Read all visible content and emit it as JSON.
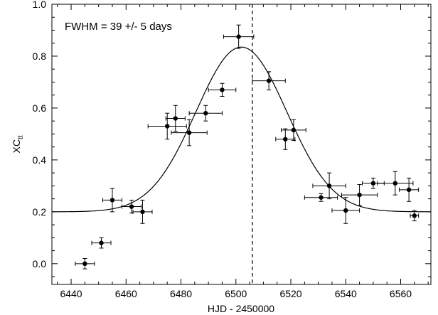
{
  "chart_data": {
    "type": "scatter",
    "title": "",
    "xlabel": "HJD - 2450000",
    "ylabel_main": "XC",
    "ylabel_sub": "tt",
    "xlim": [
      6433,
      6571
    ],
    "ylim": [
      -0.08,
      1.0
    ],
    "xticks": [
      6440,
      6460,
      6480,
      6500,
      6520,
      6540,
      6560
    ],
    "yticks": [
      0.0,
      0.2,
      0.4,
      0.6,
      0.8,
      1.0
    ],
    "ytick_labels": [
      "0.0",
      "0.2",
      "0.4",
      "0.6",
      "0.8",
      "1.0"
    ],
    "grid": false,
    "annotation": "FWHM = 39 +/- 5 days",
    "vline_x": 6506,
    "fit": {
      "baseline": 0.2,
      "amplitude": 0.635,
      "center": 6502,
      "fwhm": 39
    },
    "series": [
      {
        "points": [
          {
            "x": 6445,
            "y": 0.0,
            "xerr": 3.5,
            "yerr": 0.02
          },
          {
            "x": 6451,
            "y": 0.08,
            "xerr": 3.5,
            "yerr": 0.02
          },
          {
            "x": 6455,
            "y": 0.245,
            "xerr": 3.5,
            "yerr": 0.045
          },
          {
            "x": 6462,
            "y": 0.22,
            "xerr": 3.5,
            "yerr": 0.025
          },
          {
            "x": 6466,
            "y": 0.2,
            "xerr": 3.5,
            "yerr": 0.045
          },
          {
            "x": 6475,
            "y": 0.53,
            "xerr": 7.0,
            "yerr": 0.05
          },
          {
            "x": 6478,
            "y": 0.56,
            "xerr": 3.5,
            "yerr": 0.05
          },
          {
            "x": 6483,
            "y": 0.505,
            "xerr": 6.5,
            "yerr": 0.05
          },
          {
            "x": 6489,
            "y": 0.58,
            "xerr": 6.0,
            "yerr": 0.03
          },
          {
            "x": 6495,
            "y": 0.67,
            "xerr": 5.0,
            "yerr": 0.025
          },
          {
            "x": 6501,
            "y": 0.875,
            "xerr": 5.5,
            "yerr": 0.045
          },
          {
            "x": 6512,
            "y": 0.705,
            "xerr": 6.0,
            "yerr": 0.035
          },
          {
            "x": 6518,
            "y": 0.48,
            "xerr": 3.5,
            "yerr": 0.04
          },
          {
            "x": 6521,
            "y": 0.515,
            "xerr": 4.5,
            "yerr": 0.04
          },
          {
            "x": 6534,
            "y": 0.3,
            "xerr": 6.0,
            "yerr": 0.05
          },
          {
            "x": 6531,
            "y": 0.255,
            "xerr": 6.0,
            "yerr": 0.015
          },
          {
            "x": 6540,
            "y": 0.205,
            "xerr": 5.0,
            "yerr": 0.05
          },
          {
            "x": 6545,
            "y": 0.265,
            "xerr": 6.5,
            "yerr": 0.04
          },
          {
            "x": 6550,
            "y": 0.31,
            "xerr": 4.0,
            "yerr": 0.02
          },
          {
            "x": 6558,
            "y": 0.31,
            "xerr": 6.5,
            "yerr": 0.045
          },
          {
            "x": 6563,
            "y": 0.285,
            "xerr": 3.5,
            "yerr": 0.045
          },
          {
            "x": 6565,
            "y": 0.185,
            "xerr": 1.5,
            "yerr": 0.02
          }
        ]
      }
    ]
  }
}
